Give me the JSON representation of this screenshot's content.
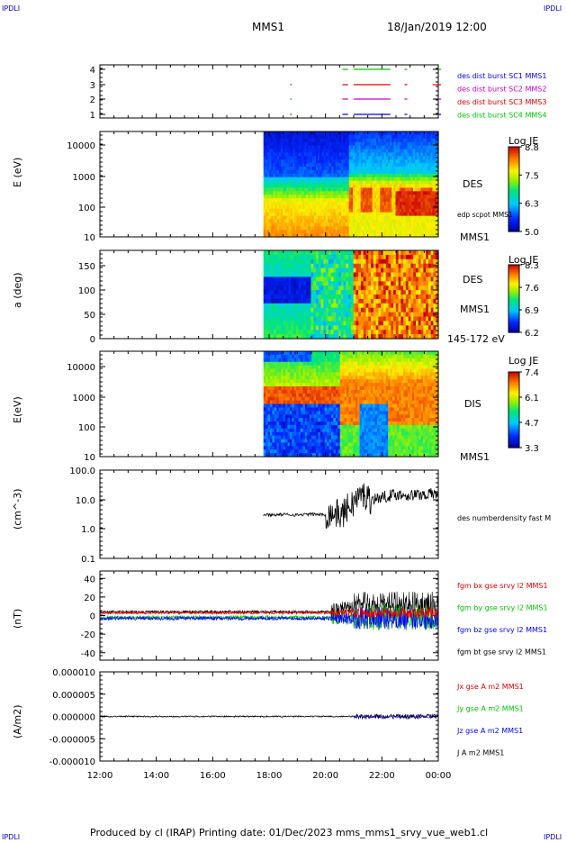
{
  "corners": {
    "tl": "IPDLI",
    "tr": "IPDLI",
    "bl": "IPDLI",
    "br": "IPDLI"
  },
  "header": {
    "title": "MMS1",
    "date": "18/Jan/2019 12:00"
  },
  "footer": "Produced by cl (IRAP)   Printing date: 01/Dec/2023   mms_mms1_srvy_vue_web1.cl",
  "colors": {
    "cyan": "#00c8c8",
    "green": "#00c800",
    "red": "#e00000",
    "magenta": "#c800c8",
    "blue": "#0000ff",
    "black": "#000000"
  },
  "chart_data": [
    {
      "type": "line",
      "panel": "burst",
      "y_ticks": [
        "4",
        "3",
        "2",
        "1"
      ],
      "legend": [
        {
          "label": "des dist burst SC1 MMS1",
          "color": "#0000ff"
        },
        {
          "label": "des dist burst SC2 MMS2",
          "color": "#c800c8"
        },
        {
          "label": "des dist burst SC3 MMS3",
          "color": "#e00000"
        },
        {
          "label": "des dist burst SC4 MMS4",
          "color": "#00c800"
        }
      ],
      "series": [
        {
          "name": "des dist burst SC4 MMS4",
          "level": 4,
          "color": "#00c800",
          "intervals": [
            [
              20.6,
              20.8
            ],
            [
              21.0,
              22.3
            ],
            [
              22.8,
              22.9
            ],
            [
              24.0,
              24.1
            ]
          ]
        },
        {
          "name": "des dist burst SC3 MMS3",
          "level": 3,
          "color": "#e00000",
          "intervals": [
            [
              18.75,
              18.8
            ],
            [
              20.6,
              20.8
            ],
            [
              21.0,
              22.3
            ],
            [
              22.8,
              22.9
            ],
            [
              23.8,
              24.1
            ]
          ]
        },
        {
          "name": "des dist burst SC2 MMS2",
          "level": 2,
          "color": "#c800c8",
          "intervals": [
            [
              18.75,
              18.8
            ],
            [
              20.6,
              20.8
            ],
            [
              21.0,
              22.3
            ],
            [
              22.8,
              22.9
            ],
            [
              24.0,
              24.1
            ]
          ]
        },
        {
          "name": "des dist burst SC1 MMS1",
          "level": 1,
          "color": "#0000ff",
          "intervals": [
            [
              18.75,
              18.8
            ],
            [
              20.6,
              20.8
            ],
            [
              21.0,
              22.3
            ],
            [
              22.8,
              22.9
            ],
            [
              24.0,
              24.1
            ]
          ]
        }
      ]
    },
    {
      "type": "heatmap",
      "panel": "des_energy",
      "ylabel": "E (eV)",
      "y_ticks": [
        "10000",
        "1000",
        "100",
        "10"
      ],
      "label_right": "DES",
      "label_annot": "edp scpot MMS1",
      "label_bottom": "MMS1",
      "colorbar": {
        "title": "Log JE",
        "ticks": [
          "8.8",
          "7.5",
          "6.3",
          "5.0"
        ]
      },
      "data_start_hour": 17.8
    },
    {
      "type": "heatmap",
      "panel": "des_pitch",
      "ylabel": "a (deg)",
      "y_ticks": [
        "150",
        "100",
        "50",
        "0"
      ],
      "label_right": "DES",
      "label_annot": "MMS1",
      "label_bottom": "145-172 eV",
      "colorbar": {
        "title": "Log JE",
        "ticks": [
          "8.3",
          "7.6",
          "6.9",
          "6.2"
        ]
      },
      "data_start_hour": 17.8
    },
    {
      "type": "heatmap",
      "panel": "dis_energy",
      "ylabel": "E(eV)",
      "y_ticks": [
        "10000",
        "1000",
        "100",
        "10"
      ],
      "label_right": "DIS",
      "label_bottom": "MMS1",
      "colorbar": {
        "title": "Log JE",
        "ticks": [
          "7.4",
          "6.1",
          "4.7",
          "3.3"
        ]
      },
      "data_start_hour": 17.8
    },
    {
      "type": "line",
      "panel": "density",
      "ylabel": "(cm^-3)",
      "y_ticks": [
        "100.0",
        "10.0",
        "1.0",
        "0.1"
      ],
      "log": true,
      "ylim": [
        0.1,
        100
      ],
      "legend": [
        {
          "label": "des numberdensity fast M",
          "color": "#000000"
        }
      ],
      "series": [
        {
          "name": "des numberdensity fast M",
          "x": [
            17.8,
            18.5,
            19.0,
            19.5,
            20.0,
            20.3,
            20.6,
            21.0,
            21.3,
            21.6,
            22.0,
            22.5,
            23.0,
            23.5,
            24.0
          ],
          "y": [
            3.0,
            3.1,
            3.0,
            3.2,
            3.0,
            3.5,
            3.0,
            8.0,
            15,
            10,
            12,
            15,
            14,
            15,
            16
          ]
        }
      ]
    },
    {
      "type": "line",
      "panel": "fgm",
      "ylabel": "(nT)",
      "y_ticks": [
        "40",
        "20",
        "0",
        "-20",
        "-40"
      ],
      "ylim": [
        -48,
        48
      ],
      "legend": [
        {
          "label": "fgm bx gse srvy l2 MMS1",
          "color": "#e00000"
        },
        {
          "label": "fgm by gse srvy l2 MMS1",
          "color": "#00c800"
        },
        {
          "label": "fgm bz gse srvy l2 MMS1",
          "color": "#0000ff"
        },
        {
          "label": "fgm bt gse srvy l2 MMS1",
          "color": "#000000"
        }
      ]
    },
    {
      "type": "line",
      "panel": "current",
      "ylabel": "(A/m2)",
      "y_ticks": [
        "0.000010",
        "0.000005",
        "0.000000",
        "-0.000005",
        "-0.000010"
      ],
      "ylim": [
        -1e-05,
        1e-05
      ],
      "legend": [
        {
          "label": "Jx gse A m2 MMS1",
          "color": "#e00000"
        },
        {
          "label": "Jy gse A m2 MMS1",
          "color": "#00c800"
        },
        {
          "label": "Jz gse A m2 MMS1",
          "color": "#0000ff"
        },
        {
          "label": "J A m2 MMS1",
          "color": "#000000"
        }
      ]
    }
  ],
  "x_axis": {
    "ticks": [
      "12:00",
      "14:00",
      "16:00",
      "18:00",
      "20:00",
      "22:00",
      "00:00"
    ],
    "range_hours": [
      12,
      24
    ]
  }
}
